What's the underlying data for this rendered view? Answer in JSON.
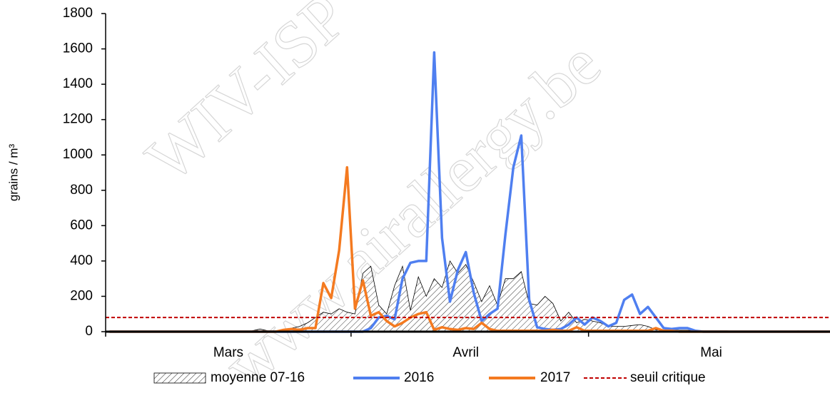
{
  "chart_data": {
    "type": "line",
    "y_label": "grains / m³",
    "watermark": [
      "WIV-ISP",
      "www.airallergy.be"
    ],
    "x": [
      1,
      2,
      3,
      4,
      5,
      6,
      7,
      8,
      9,
      10,
      11,
      12,
      13,
      14,
      15,
      16,
      17,
      18,
      19,
      20,
      21,
      22,
      23,
      24,
      25,
      26,
      27,
      28,
      29,
      30,
      31,
      32,
      33,
      34,
      35,
      36,
      37,
      38,
      39,
      40,
      41,
      42,
      43,
      44,
      45,
      46,
      47,
      48,
      49,
      50,
      51,
      52,
      53,
      54,
      55,
      56,
      57,
      58,
      59,
      60,
      61,
      62,
      63,
      64,
      65,
      66,
      67,
      68,
      69,
      70,
      71,
      72,
      73,
      74,
      75,
      76,
      77,
      78,
      79,
      80,
      81,
      82,
      83,
      84,
      85,
      86,
      87,
      88,
      89,
      90,
      91,
      92
    ],
    "xlim": [
      0.5,
      92
    ],
    "xticks": [
      {
        "value": 16,
        "label": "Mars"
      },
      {
        "value": 46,
        "label": "Avril"
      },
      {
        "value": 77,
        "label": "Mai"
      }
    ],
    "month_edges": [
      0.5,
      31.5,
      61.5
    ],
    "ylim": [
      0,
      1800
    ],
    "yticks": [
      0,
      200,
      400,
      600,
      800,
      1000,
      1200,
      1400,
      1600,
      1800
    ],
    "series": [
      {
        "name": "moyenne 07-16",
        "style": "hatched-area",
        "color": "#000000",
        "values": [
          0,
          0,
          0,
          0,
          0,
          0,
          0,
          0,
          0,
          0,
          0,
          0,
          0,
          0,
          0,
          0,
          0,
          0,
          5,
          15,
          5,
          5,
          10,
          20,
          30,
          50,
          80,
          110,
          100,
          130,
          110,
          100,
          330,
          370,
          150,
          100,
          260,
          370,
          120,
          310,
          200,
          300,
          250,
          400,
          330,
          380,
          280,
          170,
          260,
          150,
          300,
          300,
          340,
          160,
          150,
          200,
          160,
          60,
          110,
          50,
          70,
          60,
          50,
          30,
          30,
          30,
          35,
          40,
          30,
          10,
          10,
          10,
          8,
          8,
          5,
          5,
          5,
          5,
          5,
          3,
          3,
          3,
          3,
          3,
          3,
          2,
          2,
          5,
          2,
          2,
          2,
          2
        ]
      },
      {
        "name": "2016",
        "style": "line",
        "color": "#4f7ff0",
        "values": [
          0,
          0,
          0,
          0,
          0,
          0,
          0,
          0,
          0,
          0,
          0,
          0,
          0,
          0,
          0,
          0,
          0,
          0,
          0,
          0,
          0,
          0,
          0,
          0,
          0,
          0,
          0,
          0,
          0,
          0,
          0,
          0,
          0,
          20,
          80,
          90,
          70,
          300,
          390,
          400,
          400,
          1580,
          530,
          170,
          350,
          450,
          220,
          60,
          100,
          130,
          550,
          930,
          1110,
          180,
          25,
          15,
          10,
          15,
          40,
          80,
          40,
          80,
          60,
          30,
          50,
          180,
          210,
          100,
          140,
          80,
          20,
          15,
          20,
          20,
          5,
          0,
          0,
          0,
          0,
          0,
          0,
          0,
          0,
          0,
          0,
          0,
          0,
          0,
          0,
          0,
          0,
          0
        ]
      },
      {
        "name": "2017",
        "style": "line",
        "color": "#f47a20",
        "values": [
          0,
          0,
          0,
          0,
          0,
          0,
          0,
          0,
          0,
          0,
          0,
          0,
          0,
          0,
          0,
          0,
          0,
          0,
          0,
          0,
          0,
          0,
          10,
          15,
          10,
          20,
          20,
          275,
          190,
          460,
          930,
          130,
          290,
          90,
          110,
          60,
          30,
          50,
          80,
          100,
          110,
          10,
          25,
          15,
          10,
          20,
          15,
          50,
          15,
          5,
          5,
          5,
          5,
          5,
          5,
          5,
          10,
          5,
          5,
          25,
          5,
          5,
          5,
          5,
          5,
          5,
          5,
          5,
          5,
          20,
          5,
          5,
          0,
          0,
          0,
          0,
          0,
          0,
          0,
          0,
          0,
          0,
          0,
          0,
          0,
          0,
          0,
          0,
          0,
          0,
          0,
          0
        ]
      }
    ],
    "threshold": {
      "name": "seuil critique",
      "value": 80,
      "color": "#c00000"
    }
  }
}
